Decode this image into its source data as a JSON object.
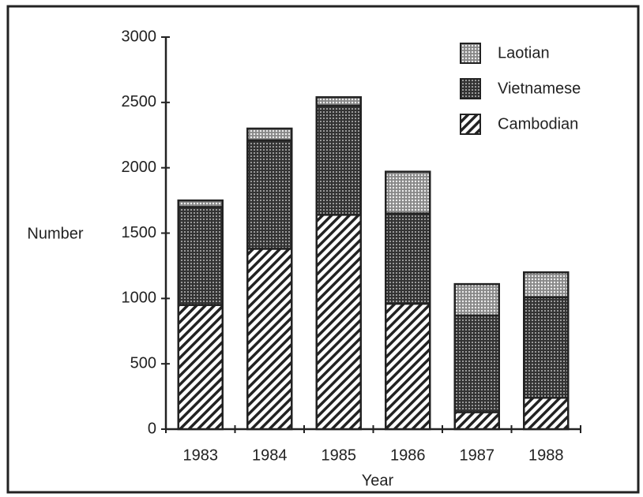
{
  "chart_data": {
    "type": "stacked_bar",
    "categories": [
      "1983",
      "1984",
      "1985",
      "1986",
      "1987",
      "1988"
    ],
    "series": [
      {
        "name": "Cambodian",
        "pattern": "diagonal",
        "values": [
          950,
          1380,
          1640,
          960,
          130,
          240
        ]
      },
      {
        "name": "Vietnamese",
        "pattern": "dots-dense",
        "values": [
          750,
          830,
          835,
          690,
          740,
          770
        ]
      },
      {
        "name": "Laotian",
        "pattern": "dots-light",
        "values": [
          50,
          90,
          65,
          320,
          240,
          190
        ]
      }
    ],
    "x_label": "Year",
    "y_label": "Number",
    "ylim": [
      0,
      3000
    ],
    "yticks": [
      0,
      500,
      1000,
      1500,
      2000,
      2500,
      3000
    ],
    "legend": "top-right",
    "grid": false
  }
}
